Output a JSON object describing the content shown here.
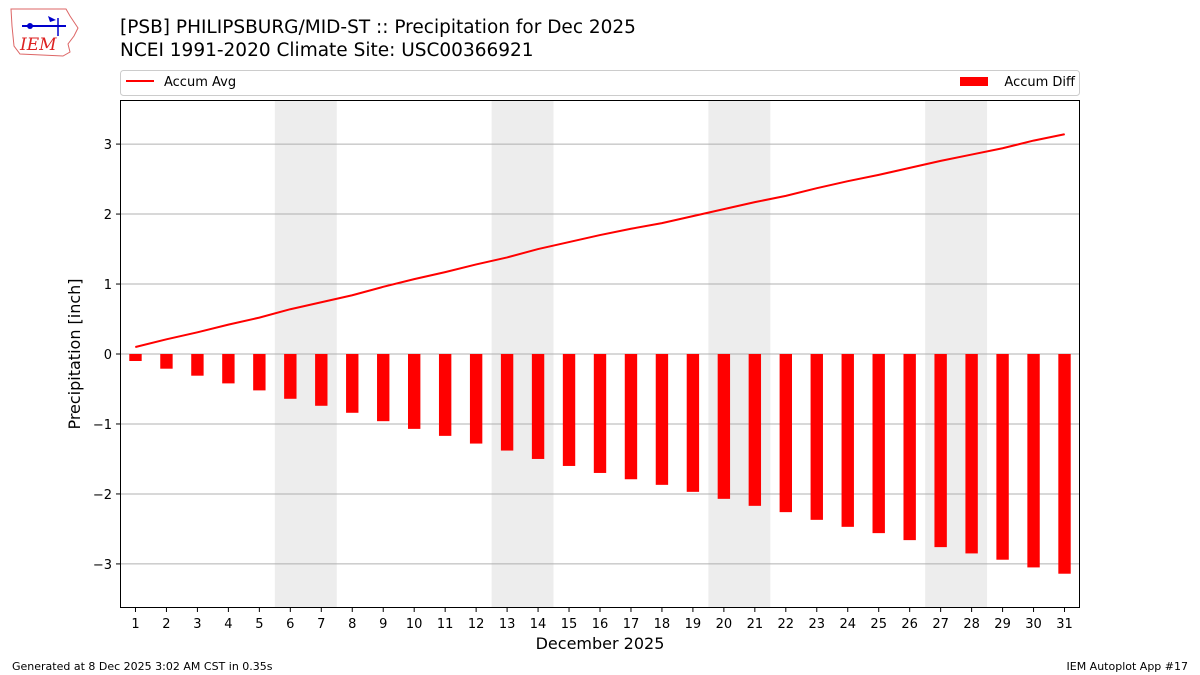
{
  "header": {
    "title_line1": "[PSB] PHILIPSBURG/MID-ST :: Precipitation for Dec 2025",
    "title_line2": "NCEI 1991-2020 Climate Site: USC00366921",
    "logo_text": "IEM"
  },
  "footer": {
    "left": "Generated at 8 Dec 2025 3:02 AM CST in 0.35s",
    "right": "IEM Autoplot App #17"
  },
  "chart_data": {
    "type": "bar",
    "xlabel": "December 2025",
    "ylabel": "Precipitation [inch]",
    "xlim": [
      0.5,
      31.5
    ],
    "ylim": [
      -3.63,
      3.63
    ],
    "yticks": [
      -3,
      -2,
      -1,
      0,
      1,
      2,
      3
    ],
    "grid": "horizontal",
    "legend_placement": "top (outside plot)",
    "weekend_shading": [
      [
        5.5,
        7.5
      ],
      [
        12.5,
        14.5
      ],
      [
        19.5,
        21.5
      ],
      [
        26.5,
        28.5
      ]
    ],
    "x": [
      1,
      2,
      3,
      4,
      5,
      6,
      7,
      8,
      9,
      10,
      11,
      12,
      13,
      14,
      15,
      16,
      17,
      18,
      19,
      20,
      21,
      22,
      23,
      24,
      25,
      26,
      27,
      28,
      29,
      30,
      31
    ],
    "series": [
      {
        "name": "Accum Avg",
        "type": "line",
        "color": "#ff0000",
        "values": [
          0.1,
          0.21,
          0.31,
          0.42,
          0.52,
          0.64,
          0.74,
          0.84,
          0.96,
          1.07,
          1.17,
          1.28,
          1.38,
          1.5,
          1.6,
          1.7,
          1.79,
          1.87,
          1.97,
          2.07,
          2.17,
          2.26,
          2.37,
          2.47,
          2.56,
          2.66,
          2.76,
          2.85,
          2.94,
          3.05,
          3.14
        ]
      },
      {
        "name": "Accum Diff",
        "type": "bar",
        "color": "#ff0000",
        "values": [
          -0.1,
          -0.21,
          -0.31,
          -0.42,
          -0.52,
          -0.64,
          -0.74,
          -0.84,
          -0.96,
          -1.07,
          -1.17,
          -1.28,
          -1.38,
          -1.5,
          -1.6,
          -1.7,
          -1.79,
          -1.87,
          -1.97,
          -2.07,
          -2.17,
          -2.26,
          -2.37,
          -2.47,
          -2.56,
          -2.66,
          -2.76,
          -2.85,
          -2.94,
          -3.05,
          -3.14
        ]
      }
    ]
  }
}
